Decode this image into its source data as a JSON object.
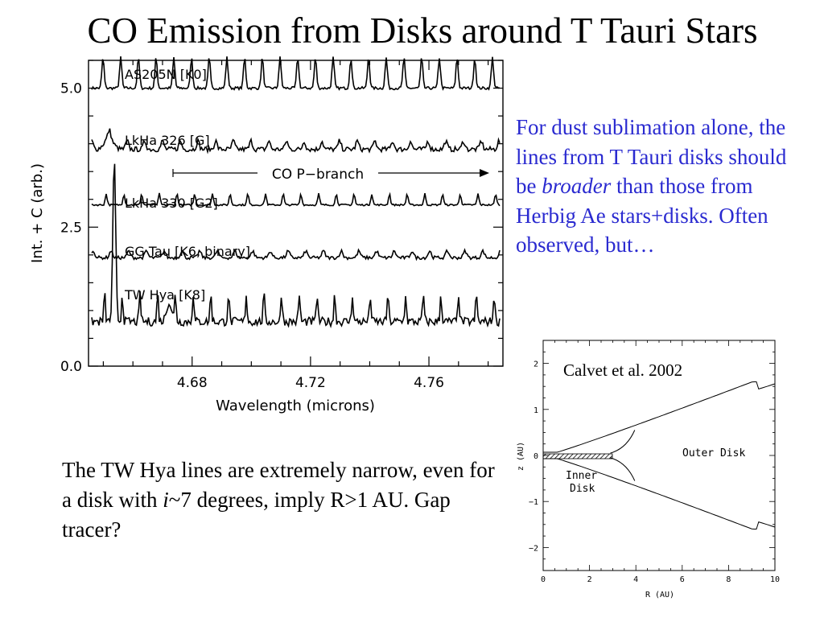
{
  "title": "CO Emission from Disks around T Tauri Stars",
  "blue_text": {
    "part1": "For dust sublimation alone, the lines from T Tauri disks should be ",
    "emph": "broader",
    "part2": " than those from Herbig Ae stars+disks. Often observed, but…"
  },
  "bottom_text": {
    "part1": "The TW Hya lines are extremely narrow, even for a disk with ",
    "emph": "i",
    "part2": "~7 degrees, imply R>1 AU.  Gap tracer?"
  },
  "citation": "Calvet et al. 2002",
  "colors": {
    "blue_text": "#2a2ad0"
  },
  "chart_data": [
    {
      "type": "line",
      "xlabel": "Wavelength (microns)",
      "ylabel": "Int. + C (arb.)",
      "xlim": [
        4.645,
        4.785
      ],
      "ylim": [
        0.0,
        5.5
      ],
      "x_ticks": [
        "4.68",
        "4.72",
        "4.76"
      ],
      "y_ticks": [
        "0.0",
        "2.5",
        "5.0"
      ],
      "annotation": "CO P−branch",
      "series": [
        {
          "name": "AS205N [K0]",
          "baseline": 5.0
        },
        {
          "name": "LkHa 326 [G]",
          "baseline": 3.9
        },
        {
          "name": "LkHa 330 [G2]",
          "baseline": 2.9
        },
        {
          "name": "GG Tau [K6, binary]",
          "baseline": 1.95
        },
        {
          "name": "TW Hya [K8]",
          "baseline": 0.8
        }
      ]
    },
    {
      "type": "line",
      "xlabel": "R (AU)",
      "ylabel": "z (AU)",
      "xlim": [
        0,
        10
      ],
      "ylim": [
        -2.5,
        2.5
      ],
      "x_ticks": [
        "0",
        "2",
        "4",
        "6",
        "8",
        "10"
      ],
      "y_ticks": [
        "−2",
        "−1",
        "0",
        "1",
        "2"
      ],
      "labels": {
        "outer": "Outer Disk",
        "inner_1": "Inner",
        "inner_2": "Disk"
      }
    }
  ]
}
